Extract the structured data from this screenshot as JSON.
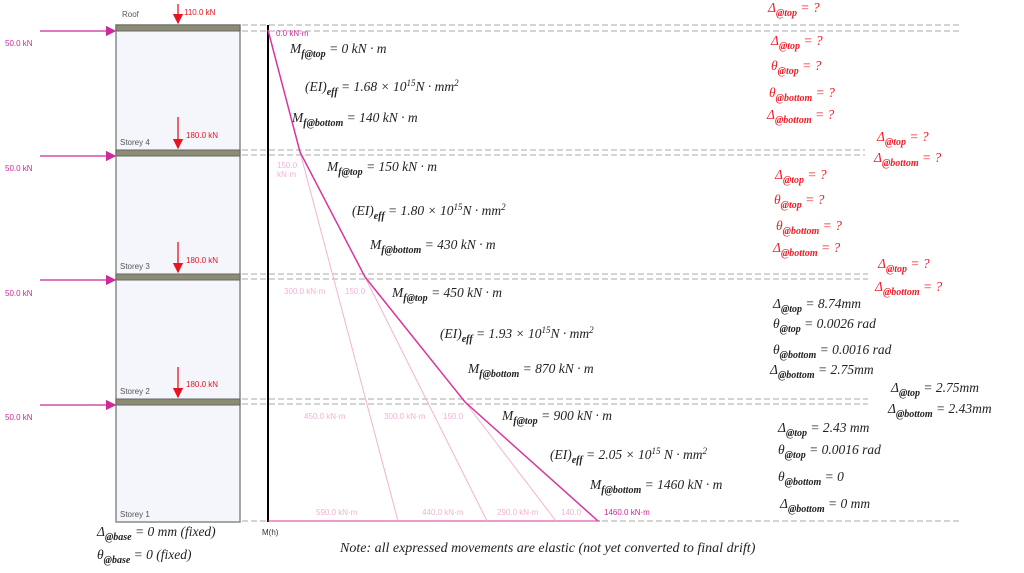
{
  "floors": [
    "Roof",
    "Storey 4",
    "Storey 3",
    "Storey 2",
    "Storey 1"
  ],
  "gravity_loads": [
    "110.0 kN",
    "180.0 kN",
    "180.0 kN",
    "180.0 kN"
  ],
  "lateral_loads": [
    "50.0 kN",
    "50.0 kN",
    "50.0 kN",
    "50.0 kN"
  ],
  "moment_axis_label": "M(h)",
  "moment_labels": [
    "0.0 kN·m",
    "150.0 kN·m",
    "300.0 kN·m",
    "150.0",
    "450.0 kN·m",
    "300.0 kN·m",
    "150.0",
    "590.0 kN·m",
    "440.0 kN·m",
    "290.0 kN·m",
    "140.0",
    "1460.0 kN·m"
  ],
  "colors": {
    "gravity": "#e8141e",
    "lateral": "#cc2a9a",
    "moment_curve": "#d9359f",
    "unknown": "#f01e28",
    "slab": "#8c8c74"
  },
  "equations": [
    [
      {
        "t": "M"
      },
      {
        "sub": "f@top"
      },
      {
        "t": " = 0 kN · m"
      }
    ],
    [
      {
        "t": "(EI)"
      },
      {
        "sub": "eff"
      },
      {
        "t": " = 1.68 × 10"
      },
      {
        "sup": "15"
      },
      {
        "t": "N · mm"
      },
      {
        "sup": "2"
      }
    ],
    [
      {
        "t": "M"
      },
      {
        "sub": "f@bottom"
      },
      {
        "t": " = 140 kN · m"
      }
    ],
    [
      {
        "t": "M"
      },
      {
        "sub": "f@top"
      },
      {
        "t": " = 150 kN · m"
      }
    ],
    [
      {
        "t": "(EI)"
      },
      {
        "sub": "eff"
      },
      {
        "t": " = 1.80 × 10"
      },
      {
        "sup": "15"
      },
      {
        "t": "N · mm"
      },
      {
        "sup": "2"
      }
    ],
    [
      {
        "t": "M"
      },
      {
        "sub": "f@bottom"
      },
      {
        "t": " = 430 kN · m"
      }
    ],
    [
      {
        "t": "M"
      },
      {
        "sub": "f@top"
      },
      {
        "t": " = 450 kN · m"
      }
    ],
    [
      {
        "t": "(EI)"
      },
      {
        "sub": "eff"
      },
      {
        "t": " = 1.93 × 10"
      },
      {
        "sup": "15"
      },
      {
        "t": "N · mm"
      },
      {
        "sup": "2"
      }
    ],
    [
      {
        "t": "M"
      },
      {
        "sub": "f@bottom"
      },
      {
        "t": " = 870 kN · m"
      }
    ],
    [
      {
        "t": "M"
      },
      {
        "sub": "f@top"
      },
      {
        "t": " = 900 kN · m"
      }
    ],
    [
      {
        "t": "(EI)"
      },
      {
        "sub": "eff"
      },
      {
        "t": " = 2.05 × 10"
      },
      {
        "sup": "15"
      },
      {
        "t": " N · mm"
      },
      {
        "sup": "2"
      }
    ],
    [
      {
        "t": "M"
      },
      {
        "sub": "f@bottom"
      },
      {
        "t": " = 1460 kN · m"
      }
    ]
  ],
  "results": [
    {
      "q": true,
      "p": [
        {
          "t": "Δ"
        },
        {
          "sub": "@top"
        },
        {
          "t": " = ?"
        }
      ]
    },
    {
      "q": true,
      "p": [
        {
          "t": "Δ"
        },
        {
          "sub": "@top"
        },
        {
          "t": " = ?"
        }
      ]
    },
    {
      "q": true,
      "p": [
        {
          "t": "θ"
        },
        {
          "sub": "@top"
        },
        {
          "t": " = ?"
        }
      ]
    },
    {
      "q": true,
      "p": [
        {
          "t": "θ"
        },
        {
          "sub": "@bottom"
        },
        {
          "t": " = ?"
        }
      ]
    },
    {
      "q": true,
      "p": [
        {
          "t": "Δ"
        },
        {
          "sub": "@bottom"
        },
        {
          "t": " = ?"
        }
      ]
    },
    {
      "q": true,
      "p": [
        {
          "t": "Δ"
        },
        {
          "sub": "@top"
        },
        {
          "t": " = ?"
        }
      ]
    },
    {
      "q": true,
      "p": [
        {
          "t": "Δ"
        },
        {
          "sub": "@bottom"
        },
        {
          "t": " = ?"
        }
      ]
    },
    {
      "q": true,
      "p": [
        {
          "t": "Δ"
        },
        {
          "sub": "@top"
        },
        {
          "t": " = ?"
        }
      ]
    },
    {
      "q": true,
      "p": [
        {
          "t": "θ"
        },
        {
          "sub": "@top"
        },
        {
          "t": " = ?"
        }
      ]
    },
    {
      "q": true,
      "p": [
        {
          "t": "θ"
        },
        {
          "sub": "@bottom"
        },
        {
          "t": " = ?"
        }
      ]
    },
    {
      "q": true,
      "p": [
        {
          "t": "Δ"
        },
        {
          "sub": "@bottom"
        },
        {
          "t": " = ?"
        }
      ]
    },
    {
      "q": true,
      "p": [
        {
          "t": "Δ"
        },
        {
          "sub": "@top"
        },
        {
          "t": " = ?"
        }
      ]
    },
    {
      "q": true,
      "p": [
        {
          "t": "Δ"
        },
        {
          "sub": "@bottom"
        },
        {
          "t": " = ?"
        }
      ]
    },
    {
      "q": false,
      "p": [
        {
          "t": "Δ"
        },
        {
          "sub": "@top"
        },
        {
          "t": " = 8.74mm"
        }
      ]
    },
    {
      "q": false,
      "p": [
        {
          "t": "θ"
        },
        {
          "sub": "@top"
        },
        {
          "t": " = 0.0026 rad"
        }
      ]
    },
    {
      "q": false,
      "p": [
        {
          "t": "θ"
        },
        {
          "sub": "@bottom"
        },
        {
          "t": " = 0.0016 rad"
        }
      ]
    },
    {
      "q": false,
      "p": [
        {
          "t": "Δ"
        },
        {
          "sub": "@bottom"
        },
        {
          "t": " = 2.75mm"
        }
      ]
    },
    {
      "q": false,
      "p": [
        {
          "t": "Δ"
        },
        {
          "sub": "@top"
        },
        {
          "t": " = 2.75mm"
        }
      ]
    },
    {
      "q": false,
      "p": [
        {
          "t": "Δ"
        },
        {
          "sub": "@bottom"
        },
        {
          "t": " = 2.43mm"
        }
      ]
    },
    {
      "q": false,
      "p": [
        {
          "t": "Δ"
        },
        {
          "sub": "@top"
        },
        {
          "t": " = 2.43 mm"
        }
      ]
    },
    {
      "q": false,
      "p": [
        {
          "t": "θ"
        },
        {
          "sub": "@top"
        },
        {
          "t": " = 0.0016 rad"
        }
      ]
    },
    {
      "q": false,
      "p": [
        {
          "t": "θ"
        },
        {
          "sub": "@bottom"
        },
        {
          "t": " = 0"
        }
      ]
    },
    {
      "q": false,
      "p": [
        {
          "t": "Δ"
        },
        {
          "sub": "@bottom"
        },
        {
          "t": " = 0 mm"
        }
      ]
    },
    {
      "q": false,
      "p": [
        {
          "t": "Δ"
        },
        {
          "sub": "@base"
        },
        {
          "t": " = 0 mm (fixed)"
        }
      ]
    },
    {
      "q": false,
      "p": [
        {
          "t": "θ"
        },
        {
          "sub": "@base"
        },
        {
          "t": " = 0 (fixed)"
        }
      ]
    }
  ],
  "note": "Note: all expressed movements are elastic (not yet converted to final drift)"
}
